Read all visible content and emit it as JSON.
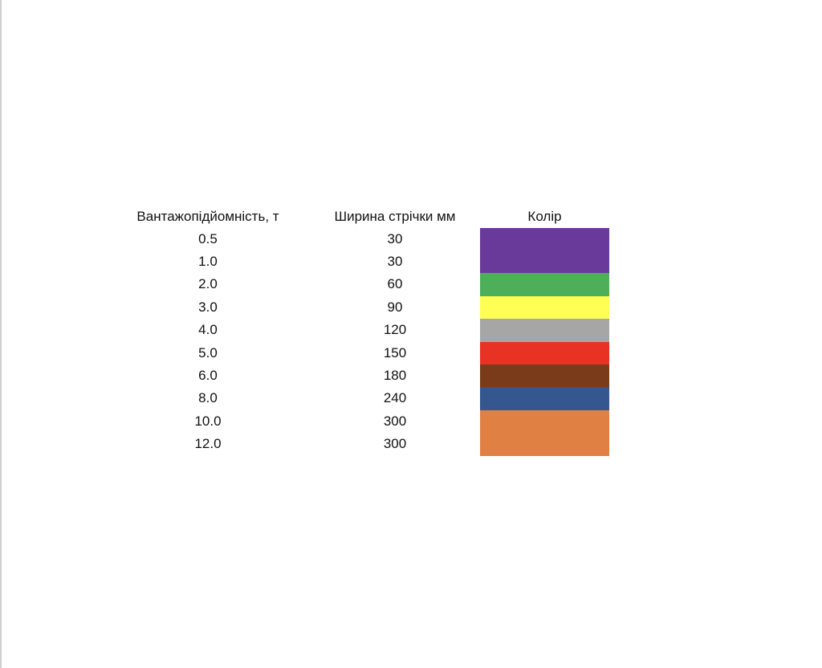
{
  "table": {
    "headers": [
      "Вантажопідйомність, т",
      "Ширина стрічки мм",
      "Колір"
    ],
    "rows": [
      {
        "capacity": "0.5",
        "width": "30",
        "color": "#6a3a9a"
      },
      {
        "capacity": "1.0",
        "width": "30",
        "color": "#6a3a9a"
      },
      {
        "capacity": "2.0",
        "width": "60",
        "color": "#4daf5a"
      },
      {
        "capacity": "3.0",
        "width": "90",
        "color": "#fffe55"
      },
      {
        "capacity": "4.0",
        "width": "120",
        "color": "#a6a6a6"
      },
      {
        "capacity": "5.0",
        "width": "150",
        "color": "#e83223"
      },
      {
        "capacity": "6.0",
        "width": "180",
        "color": "#7a3b1b"
      },
      {
        "capacity": "8.0",
        "width": "240",
        "color": "#36568f"
      },
      {
        "capacity": "10.0",
        "width": "300",
        "color": "#e08143"
      },
      {
        "capacity": "12.0",
        "width": "300",
        "color": "#e08143"
      }
    ]
  }
}
